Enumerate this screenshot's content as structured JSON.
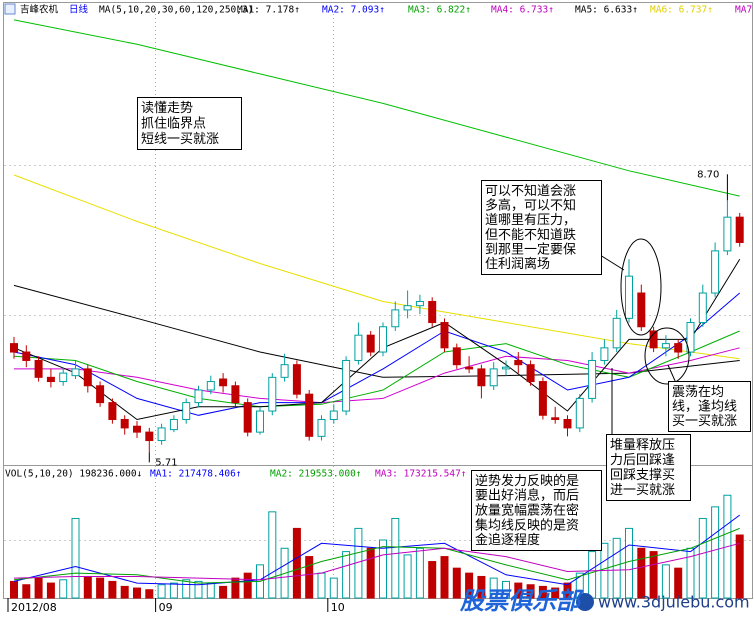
{
  "header": {
    "stock": "吉峰农机",
    "period": "日线",
    "ma_params": "MA(5,10,20,30,60,120,250,3)",
    "ma_items": [
      {
        "label": "MA1: 7.178↑",
        "color": "#000000"
      },
      {
        "label": "MA2: 7.093↑",
        "color": "#0000ff"
      },
      {
        "label": "MA3: 6.822↑",
        "color": "#00a000"
      },
      {
        "label": "MA4: 6.733↑",
        "color": "#c000c0"
      },
      {
        "label": "MA5: 6.633↑",
        "color": "#000000"
      },
      {
        "label": "MA6: 6.737↑",
        "color": "#e0d000"
      },
      {
        "label": "MA7:",
        "color": "#c000c0"
      }
    ]
  },
  "chart_data": [
    {
      "type": "candlestick",
      "ylim": [
        5.56,
        10.91
      ],
      "up_color": "#00a0a0",
      "down_color": "#c00000",
      "candles": [
        [
          7.0,
          7.08,
          6.82,
          6.9
        ],
        [
          6.9,
          6.98,
          6.72,
          6.8
        ],
        [
          6.8,
          6.85,
          6.55,
          6.6
        ],
        [
          6.6,
          6.7,
          6.48,
          6.55
        ],
        [
          6.55,
          6.72,
          6.5,
          6.65
        ],
        [
          6.62,
          6.8,
          6.58,
          6.7
        ],
        [
          6.7,
          6.75,
          6.42,
          6.5
        ],
        [
          6.5,
          6.55,
          6.25,
          6.3
        ],
        [
          6.3,
          6.35,
          6.05,
          6.1
        ],
        [
          6.1,
          6.15,
          5.92,
          6.0
        ],
        [
          6.02,
          6.08,
          5.88,
          5.95
        ],
        [
          5.95,
          6.0,
          5.71,
          5.85
        ],
        [
          5.85,
          6.05,
          5.8,
          6.0
        ],
        [
          5.98,
          6.15,
          5.95,
          6.1
        ],
        [
          6.1,
          6.35,
          6.05,
          6.3
        ],
        [
          6.3,
          6.5,
          6.25,
          6.45
        ],
        [
          6.45,
          6.62,
          6.4,
          6.55
        ],
        [
          6.58,
          6.65,
          6.42,
          6.5
        ],
        [
          6.5,
          6.55,
          6.25,
          6.3
        ],
        [
          6.3,
          6.35,
          5.9,
          5.95
        ],
        [
          5.95,
          6.25,
          5.92,
          6.2
        ],
        [
          6.2,
          6.65,
          6.15,
          6.6
        ],
        [
          6.6,
          6.88,
          6.55,
          6.75
        ],
        [
          6.75,
          6.8,
          6.35,
          6.4
        ],
        [
          6.4,
          6.45,
          5.85,
          5.9
        ],
        [
          5.9,
          6.15,
          5.85,
          6.1
        ],
        [
          6.1,
          6.28,
          6.05,
          6.2
        ],
        [
          6.2,
          6.85,
          6.15,
          6.8
        ],
        [
          6.8,
          7.25,
          6.75,
          7.1
        ],
        [
          7.1,
          7.15,
          6.85,
          6.9
        ],
        [
          6.9,
          7.25,
          6.85,
          7.2
        ],
        [
          7.2,
          7.5,
          7.15,
          7.4
        ],
        [
          7.4,
          7.63,
          7.3,
          7.45
        ],
        [
          7.45,
          7.58,
          7.35,
          7.5
        ],
        [
          7.5,
          7.55,
          7.2,
          7.25
        ],
        [
          7.25,
          7.3,
          6.9,
          6.95
        ],
        [
          6.95,
          7.0,
          6.7,
          6.75
        ],
        [
          6.72,
          6.85,
          6.65,
          6.7
        ],
        [
          6.7,
          6.75,
          6.35,
          6.5
        ],
        [
          6.5,
          6.78,
          6.45,
          6.7
        ],
        [
          6.7,
          6.8,
          6.62,
          6.72
        ],
        [
          6.8,
          6.9,
          6.65,
          6.75
        ],
        [
          6.75,
          6.8,
          6.5,
          6.55
        ],
        [
          6.55,
          6.6,
          6.1,
          6.15
        ],
        [
          6.12,
          6.25,
          6.05,
          6.1
        ],
        [
          6.1,
          6.15,
          5.9,
          6.0
        ],
        [
          6.0,
          6.4,
          5.95,
          6.35
        ],
        [
          6.35,
          6.9,
          6.3,
          6.8
        ],
        [
          6.8,
          7.05,
          6.75,
          6.95
        ],
        [
          6.95,
          7.4,
          6.9,
          7.3
        ],
        [
          7.3,
          8.0,
          7.25,
          7.8
        ],
        [
          7.6,
          7.7,
          7.15,
          7.2
        ],
        [
          7.15,
          7.2,
          6.9,
          6.95
        ],
        [
          6.95,
          7.1,
          6.85,
          7.0
        ],
        [
          7.0,
          7.05,
          6.82,
          6.9
        ],
        [
          6.9,
          7.3,
          6.85,
          7.25
        ],
        [
          7.25,
          7.7,
          7.2,
          7.6
        ],
        [
          7.6,
          8.2,
          7.55,
          8.1
        ],
        [
          8.1,
          8.7,
          8.05,
          8.5
        ],
        [
          8.5,
          8.55,
          8.15,
          8.2
        ]
      ],
      "lines": [
        {
          "color": "#00c000",
          "x": [
            0,
            10,
            20,
            30,
            40,
            50,
            59
          ],
          "values": [
            10.84,
            10.55,
            10.2,
            9.85,
            9.45,
            9.05,
            8.75
          ]
        },
        {
          "color": "#e8e000",
          "x": [
            0,
            10,
            20,
            30,
            40,
            50,
            59
          ],
          "values": [
            9.0,
            8.45,
            7.95,
            7.5,
            7.25,
            7.0,
            6.82
          ]
        },
        {
          "color": "#000000",
          "x": [
            0,
            10,
            20,
            30,
            40,
            50,
            59
          ],
          "values": [
            7.69,
            7.3,
            6.9,
            6.6,
            6.62,
            6.65,
            6.8
          ]
        },
        {
          "color": "#d000d0",
          "x": [
            0,
            5,
            10,
            15,
            20,
            25,
            30,
            35,
            40,
            45,
            50,
            55,
            59
          ],
          "values": [
            6.7,
            6.7,
            6.6,
            6.45,
            6.35,
            6.3,
            6.35,
            6.65,
            6.85,
            6.8,
            6.65,
            6.8,
            6.95
          ]
        },
        {
          "color": "#00b000",
          "x": [
            0,
            5,
            10,
            15,
            20,
            25,
            30,
            35,
            40,
            45,
            50,
            55,
            59
          ],
          "values": [
            6.85,
            6.8,
            6.55,
            6.35,
            6.25,
            6.28,
            6.45,
            6.9,
            7.0,
            6.75,
            6.6,
            6.9,
            7.15
          ]
        },
        {
          "color": "#0000ff",
          "x": [
            0,
            5,
            10,
            15,
            20,
            25,
            30,
            35,
            40,
            45,
            50,
            55,
            59
          ],
          "values": [
            6.9,
            6.75,
            6.35,
            6.15,
            6.3,
            6.3,
            6.7,
            7.15,
            6.9,
            6.45,
            6.6,
            7.1,
            7.6
          ]
        },
        {
          "color": "#000000",
          "x": [
            0,
            5,
            10,
            15,
            20,
            25,
            30,
            35,
            40,
            45,
            50,
            55,
            59
          ],
          "values": [
            6.95,
            6.65,
            6.1,
            6.25,
            6.25,
            6.3,
            6.95,
            7.25,
            6.75,
            6.2,
            7.05,
            7.05,
            8.0
          ]
        }
      ],
      "price_marks": [
        {
          "index": 58,
          "value": 8.7,
          "label": "8.70"
        },
        {
          "index": 11,
          "value": 5.71,
          "label": "5.71"
        }
      ],
      "xlabels": [
        {
          "value": 0,
          "label": "2012/08"
        },
        {
          "value": 12,
          "label": "09"
        },
        {
          "value": 26,
          "label": "10"
        }
      ]
    },
    {
      "type": "bar",
      "ylim": [
        0,
        700000
      ],
      "header_items": [
        {
          "label": "VOL(5,10,20) 198236.000↓",
          "color": "#000000"
        },
        {
          "label": "MA1: 217478.406↑",
          "color": "#0000ff"
        },
        {
          "label": "MA2: 219553.000↑",
          "color": "#00a000"
        },
        {
          "label": "MA3: 173215.547↑",
          "color": "#c000c0"
        }
      ],
      "values": [
        100000,
        80000,
        120000,
        90000,
        110000,
        480000,
        130000,
        120000,
        100000,
        70000,
        60000,
        50000,
        80000,
        90000,
        110000,
        100000,
        90000,
        70000,
        120000,
        150000,
        200000,
        520000,
        300000,
        420000,
        250000,
        150000,
        120000,
        280000,
        420000,
        300000,
        350000,
        480000,
        260000,
        300000,
        220000,
        250000,
        180000,
        150000,
        130000,
        120000,
        100000,
        90000,
        80000,
        70000,
        60000,
        90000,
        150000,
        280000,
        330000,
        360000,
        420000,
        300000,
        280000,
        200000,
        180000,
        300000,
        480000,
        550000,
        620000,
        380000
      ],
      "lines": [
        {
          "color": "#0000ff",
          "x": [
            0,
            5,
            10,
            15,
            20,
            25,
            30,
            35,
            40,
            45,
            50,
            55,
            59
          ],
          "values": [
            100000,
            190000,
            90000,
            80000,
            110000,
            330000,
            300000,
            330000,
            140000,
            80000,
            320000,
            280000,
            500000
          ]
        },
        {
          "color": "#00a000",
          "x": [
            0,
            5,
            10,
            15,
            20,
            25,
            30,
            35,
            40,
            45,
            50,
            55,
            59
          ],
          "values": [
            110000,
            150000,
            140000,
            90000,
            100000,
            220000,
            310000,
            300000,
            200000,
            110000,
            220000,
            300000,
            420000
          ]
        },
        {
          "color": "#c000c0",
          "x": [
            0,
            5,
            10,
            15,
            20,
            25,
            30,
            35,
            40,
            45,
            50,
            55,
            59
          ],
          "values": [
            120000,
            130000,
            130000,
            120000,
            110000,
            150000,
            260000,
            300000,
            250000,
            160000,
            170000,
            250000,
            330000
          ]
        }
      ]
    }
  ],
  "annotations": [
    {
      "lines": [
        "读懂走势",
        "抓住临界点",
        "短线一买就涨"
      ]
    },
    {
      "lines": [
        "可以不知道会涨",
        "多高，可以不知",
        "道哪里有压力，",
        "但不能不知道跌",
        "到那里一定要保",
        "住利润离场"
      ]
    },
    {
      "lines": [
        "震荡在均",
        "线，逢均线",
        "买一买就涨"
      ]
    },
    {
      "lines": [
        "堆量释放压",
        "力后回踩逢",
        "回踩支撑买",
        "进一买就涨"
      ]
    },
    {
      "lines": [
        "逆势发力反映的是",
        "要出好消息，而后",
        "放量宽幅震荡在密",
        "集均线反映的是资",
        "金追逐程度"
      ]
    }
  ],
  "watermark": {
    "brand": "股票俱乐部",
    "url": "www.3djulebu.com"
  }
}
